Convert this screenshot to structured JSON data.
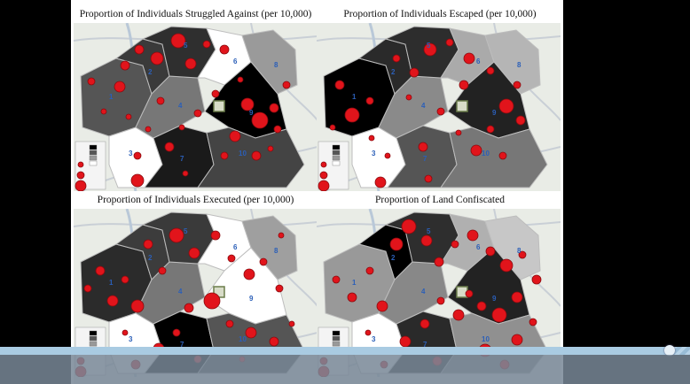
{
  "panels": [
    {
      "title": "Proportion of Individuals Struggled Against (per 10,000)",
      "district_shades": [
        "#555555",
        "#3a3a3a",
        "#ffffff",
        "#777777",
        "#2f2f2f",
        "#ffffff",
        "#1a1a1a",
        "#9a9a9a",
        "#000000",
        "#444444"
      ]
    },
    {
      "title": "Proportion of Individuals Escaped (per 10,000)",
      "district_shades": [
        "#000000",
        "#2a2a2a",
        "#ffffff",
        "#8a8a8a",
        "#2d2d2d",
        "#aaaaaa",
        "#555555",
        "#b5b5b5",
        "#222222",
        "#777777"
      ]
    },
    {
      "title": "Proportion of Individuals Executed (per 10,000)",
      "district_shades": [
        "#2b2b2b",
        "#3c3c3c",
        "#ffffff",
        "#777777",
        "#3a3a3a",
        "#ffffff",
        "#000000",
        "#9f9f9f",
        "#ffffff",
        "#555555"
      ]
    },
    {
      "title": "Proportion of Land Confiscated",
      "district_shades": [
        "#999999",
        "#000000",
        "#ffffff",
        "#888888",
        "#2e2e2e",
        "#b0b0b0",
        "#2a2a2a",
        "#c7c7c7",
        "#222222",
        "#909090"
      ]
    }
  ],
  "district_labels": [
    "1",
    "2",
    "3",
    "4",
    "5",
    "6",
    "7",
    "8",
    "9",
    "10"
  ],
  "colors": {
    "circle": "#e1141b",
    "circle_stroke": "#8a0a0e",
    "district_label": "#2b5fb8",
    "progress_track": "#8fb4cf",
    "control_bar": "#7a8896"
  },
  "video": {
    "progress_fraction": 0.97
  }
}
